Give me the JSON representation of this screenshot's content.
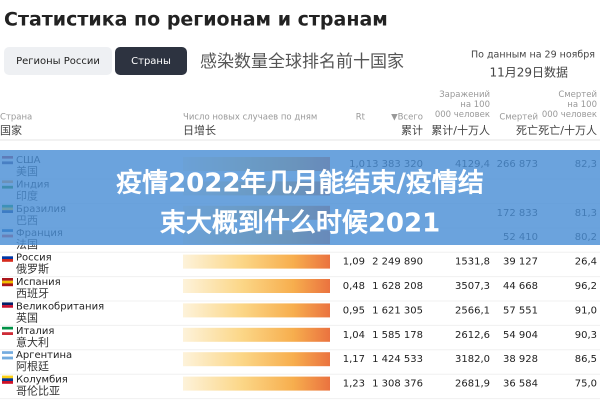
{
  "header": {
    "title": "Статистика по регионам и странам",
    "tabs": [
      "Регионы России",
      "Страны"
    ],
    "caption": "感染数量全球排名前十国家",
    "date": "По данным на 29 ноября",
    "date_zh": "11月29日数据"
  },
  "table": {
    "columns": [
      {
        "label": "Страна",
        "zh": "国家"
      },
      {
        "label": "Число новых случаев по дням",
        "zh": "日增长"
      },
      {
        "label": "Rt"
      },
      {
        "label": "▼Всего",
        "zh": "累计"
      },
      {
        "label": "Заражений на 100 000 человек",
        "zh": "累计/十万人"
      },
      {
        "label": "Смертей",
        "zh": "死亡"
      },
      {
        "label": "Смертей на 100 000 человек",
        "zh": "死亡/十万人"
      }
    ],
    "rows": [
      {
        "name": "США",
        "zh": "美国",
        "rt": "1,0",
        "total": "13 383 320",
        "per100k": "4129,4",
        "deaths": "266 873",
        "deaths100k": "82,3"
      },
      {
        "name": "Индия",
        "zh": "印度",
        "rt": null,
        "total": null,
        "per100k": null,
        "deaths": null,
        "deaths100k": null
      },
      {
        "name": "Бразилия",
        "zh": "巴西",
        "rt": null,
        "total": null,
        "per100k": null,
        "deaths": "172 833",
        "deaths100k": "81,3"
      },
      {
        "name": "Франция",
        "zh": "法国",
        "rt": null,
        "total": null,
        "per100k": null,
        "deaths": "52 410",
        "deaths100k": "80,2"
      },
      {
        "name": "Россия",
        "zh": "俄罗斯",
        "rt": "1,09",
        "total": "2 249 890",
        "per100k": "1531,8",
        "deaths": "39 127",
        "deaths100k": "26,4"
      },
      {
        "name": "Испания",
        "zh": "西班牙",
        "rt": "0,48",
        "total": "1 628 208",
        "per100k": "3507,3",
        "deaths": "44 668",
        "deaths100k": "96,2"
      },
      {
        "name": "Великобритания",
        "zh": "英国",
        "rt": "0,95",
        "total": "1 621 305",
        "per100k": "2566,1",
        "deaths": "57 551",
        "deaths100k": "91,0"
      },
      {
        "name": "Италия",
        "zh": "意大利",
        "rt": "1,04",
        "total": "1 585 178",
        "per100k": "2612,6",
        "deaths": "54 904",
        "deaths100k": "90,3"
      },
      {
        "name": "Аргентина",
        "zh": "阿根廷",
        "rt": "1,17",
        "total": "1 424 533",
        "per100k": "3182,0",
        "deaths": "38 928",
        "deaths100k": "86,5"
      },
      {
        "name": "Колумбия",
        "zh": "哥伦比亚",
        "rt": "1,23",
        "total": "1 308 376",
        "per100k": "2681,9",
        "deaths": "36 584",
        "deaths100k": "75,0"
      }
    ]
  },
  "banner": {
    "lines": [
      "疫情2022年几月能结束/疫情结",
      "束大概到什么时候2021"
    ]
  }
}
